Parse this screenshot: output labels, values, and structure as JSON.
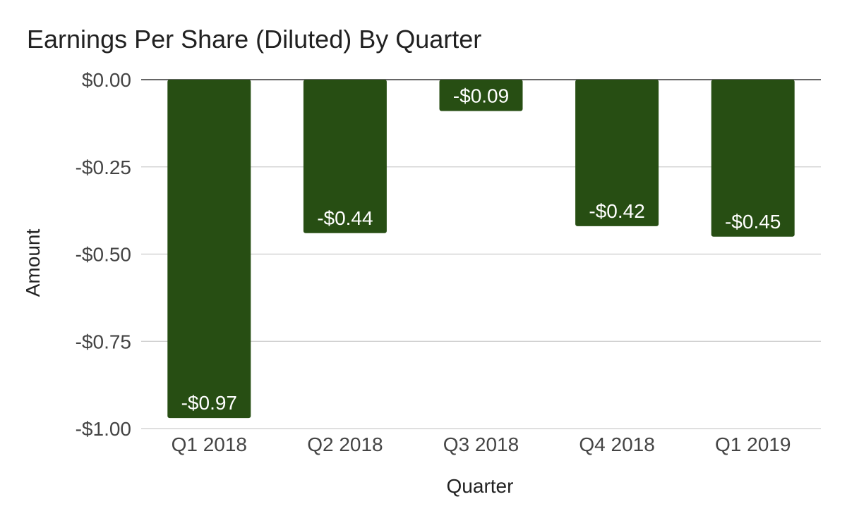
{
  "chart_data": {
    "type": "bar",
    "title": "Earnings Per Share (Diluted) By Quarter",
    "xlabel": "Quarter",
    "ylabel": "Amount",
    "categories": [
      "Q1 2018",
      "Q2 2018",
      "Q3 2018",
      "Q4 2018",
      "Q1 2019"
    ],
    "values": [
      -0.97,
      -0.44,
      -0.09,
      -0.42,
      -0.45
    ],
    "data_labels": [
      "-$0.97",
      "-$0.44",
      "-$0.09",
      "-$0.42",
      "-$0.45"
    ],
    "ylim": [
      -1.0,
      0.0
    ],
    "yticks": [
      0.0,
      -0.25,
      -0.5,
      -0.75,
      -1.0
    ],
    "ytick_labels": [
      "$0.00",
      "-$0.25",
      "-$0.50",
      "-$0.75",
      "-$1.00"
    ],
    "grid": true,
    "legend": "none",
    "bar_color": "#274e13"
  }
}
